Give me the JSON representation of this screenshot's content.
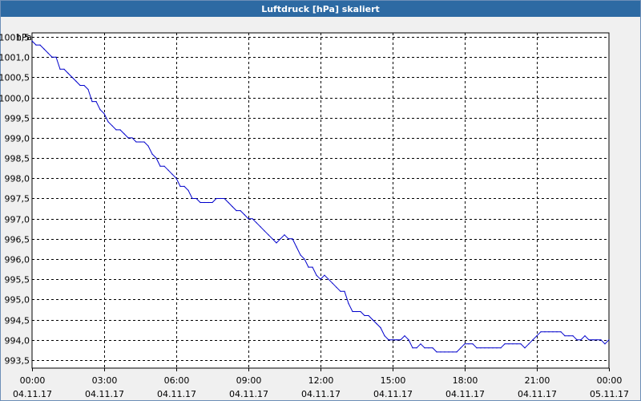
{
  "window": {
    "title": "Luftdruck [hPa] skaliert"
  },
  "chart_data": {
    "type": "line",
    "title": "Luftdruck [hPa] skaliert",
    "ylabel": "hPa",
    "xlabel": "",
    "grid": true,
    "ylim": [
      993.3,
      1001.6
    ],
    "xlim": [
      0,
      1440
    ],
    "y_ticks": [
      993.5,
      994.0,
      994.5,
      995.0,
      995.5,
      996.0,
      996.5,
      997.0,
      997.5,
      998.0,
      998.5,
      999.0,
      999.5,
      1000.0,
      1000.5,
      1001.0,
      1001.5
    ],
    "y_tick_labels": [
      "993,5",
      "994,0",
      "994,5",
      "995,0",
      "995,5",
      "996,0",
      "996,5",
      "997,0",
      "997,5",
      "998,0",
      "998,5",
      "999,0",
      "999,5",
      "1000,0",
      "1000,5",
      "1001,0",
      "1001,5"
    ],
    "x_ticks": [
      0,
      180,
      360,
      540,
      720,
      900,
      1080,
      1260,
      1440
    ],
    "x_tick_labels": [
      [
        "00:00",
        "04.11.17"
      ],
      [
        "03:00",
        "04.11.17"
      ],
      [
        "06:00",
        "04.11.17"
      ],
      [
        "09:00",
        "04.11.17"
      ],
      [
        "12:00",
        "04.11.17"
      ],
      [
        "15:00",
        "04.11.17"
      ],
      [
        "18:00",
        "04.11.17"
      ],
      [
        "21:00",
        "04.11.17"
      ],
      [
        "00:00",
        "05.11.17"
      ]
    ],
    "series_color": "#0000cc",
    "series": [
      {
        "values_x": [
          0,
          10,
          20,
          30,
          40,
          50,
          60,
          70,
          80,
          90,
          100,
          110,
          120,
          130,
          140,
          150,
          160,
          170,
          180,
          190,
          200,
          210,
          220,
          230,
          240,
          250,
          260,
          270,
          280,
          290,
          300,
          310,
          320,
          330,
          340,
          350,
          360,
          370,
          380,
          390,
          400,
          410,
          420,
          430,
          440,
          450,
          460,
          470,
          480,
          490,
          500,
          510,
          520,
          530,
          540,
          550,
          560,
          570,
          580,
          590,
          600,
          610,
          620,
          630,
          640,
          650,
          660,
          670,
          680,
          690,
          700,
          710,
          720,
          730,
          740,
          750,
          760,
          770,
          780,
          790,
          800,
          810,
          820,
          830,
          840,
          850,
          860,
          870,
          880,
          890,
          900,
          910,
          920,
          930,
          940,
          950,
          960,
          970,
          980,
          990,
          1000,
          1010,
          1020,
          1030,
          1040,
          1050,
          1060,
          1070,
          1080,
          1090,
          1100,
          1110,
          1120,
          1130,
          1140,
          1150,
          1160,
          1170,
          1180,
          1190,
          1200,
          1210,
          1220,
          1230,
          1240,
          1250,
          1260,
          1270,
          1280,
          1290,
          1300,
          1310,
          1320,
          1330,
          1340,
          1350,
          1360,
          1370,
          1380,
          1390,
          1400,
          1410,
          1420,
          1430,
          1440
        ],
        "values_y": [
          1001.4,
          1001.3,
          1001.3,
          1001.2,
          1001.1,
          1001.0,
          1001.0,
          1000.7,
          1000.7,
          1000.6,
          1000.5,
          1000.4,
          1000.3,
          1000.3,
          1000.2,
          999.9,
          999.9,
          999.7,
          999.6,
          999.4,
          999.3,
          999.2,
          999.2,
          999.1,
          999.0,
          999.0,
          998.9,
          998.9,
          998.9,
          998.8,
          998.6,
          998.5,
          998.3,
          998.3,
          998.2,
          998.1,
          998.0,
          997.8,
          997.8,
          997.7,
          997.5,
          997.5,
          997.4,
          997.4,
          997.4,
          997.4,
          997.5,
          997.5,
          997.5,
          997.4,
          997.3,
          997.2,
          997.2,
          997.1,
          997.0,
          997.0,
          996.9,
          996.8,
          996.7,
          996.6,
          996.5,
          996.4,
          996.5,
          996.6,
          996.5,
          996.5,
          996.3,
          996.1,
          996.0,
          995.8,
          995.8,
          995.6,
          995.5,
          995.6,
          995.5,
          995.4,
          995.3,
          995.2,
          995.2,
          994.9,
          994.7,
          994.7,
          994.7,
          994.6,
          994.6,
          994.5,
          994.4,
          994.3,
          994.1,
          994.0,
          994.0,
          994.0,
          994.0,
          994.1,
          994.0,
          993.8,
          993.8,
          993.9,
          993.8,
          993.8,
          993.8,
          993.7,
          993.7,
          993.7,
          993.7,
          993.7,
          993.7,
          993.8,
          993.9,
          993.9,
          993.9,
          993.8,
          993.8,
          993.8,
          993.8,
          993.8,
          993.8,
          993.8,
          993.9,
          993.9,
          993.9,
          993.9,
          993.9,
          993.8,
          993.9,
          994.0,
          994.1,
          994.2,
          994.2,
          994.2,
          994.2,
          994.2,
          994.2,
          994.1,
          994.1,
          994.1,
          994.0,
          994.0,
          994.1,
          994.0,
          994.0,
          994.0,
          994.0,
          993.9,
          994.0
        ]
      }
    ]
  }
}
